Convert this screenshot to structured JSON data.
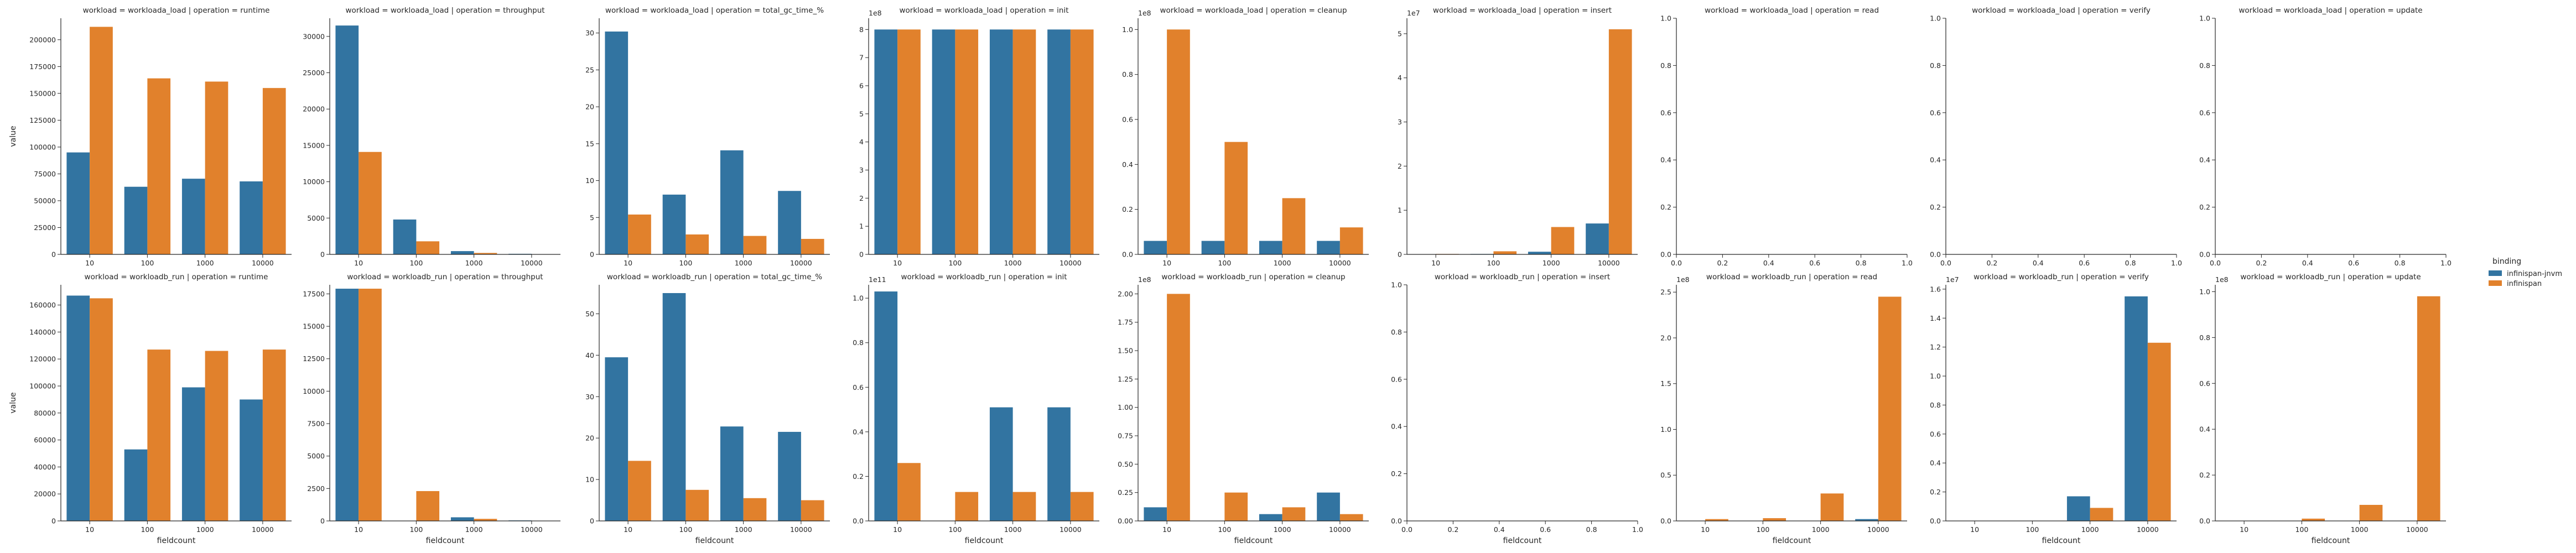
{
  "legend": {
    "title": "binding",
    "entries": [
      {
        "name": "infinispan-jnvm",
        "color": "#3274a1"
      },
      {
        "name": "infinispan",
        "color": "#e1812c"
      }
    ]
  },
  "chart_data": {
    "type": "bar",
    "grid": false,
    "legend_position": "right",
    "series_names": [
      "infinispan-jnvm",
      "infinispan"
    ],
    "series_colors": [
      "#3274a1",
      "#e1812c"
    ],
    "xlabel": "fieldcount",
    "ylabel": "value",
    "panels": [
      {
        "title": "workload = workloada_load | operation = runtime",
        "categories": [
          "10",
          "100",
          "1000",
          "10000"
        ],
        "values": [
          [
            95000,
            63000,
            70500,
            68000
          ],
          [
            212000,
            164000,
            161000,
            155000
          ]
        ],
        "ylim": [
          0,
          220000
        ],
        "yticks": [
          0,
          25000,
          50000,
          75000,
          100000,
          125000,
          150000,
          175000,
          200000
        ],
        "ytick_labels": [
          "0",
          "25000",
          "50000",
          "75000",
          "100000",
          "125000",
          "150000",
          "175000",
          "200000"
        ],
        "offset": ""
      },
      {
        "title": "workload = workloada_load | operation = throughput",
        "categories": [
          "10",
          "100",
          "1000",
          "10000"
        ],
        "values": [
          [
            31500,
            4800,
            450,
            80
          ],
          [
            14100,
            1800,
            200,
            30
          ]
        ],
        "ylim": [
          0,
          32500
        ],
        "yticks": [
          0,
          5000,
          10000,
          15000,
          20000,
          25000,
          30000
        ],
        "ytick_labels": [
          "0",
          "5000",
          "10000",
          "15000",
          "20000",
          "25000",
          "30000"
        ],
        "offset": ""
      },
      {
        "title": "workload = workloada_load | operation = total_gc_time_%",
        "categories": [
          "10",
          "100",
          "1000",
          "10000"
        ],
        "values": [
          [
            30.2,
            8.1,
            14.1,
            8.6
          ],
          [
            5.4,
            2.7,
            2.5,
            2.1
          ]
        ],
        "ylim": [
          0,
          32
        ],
        "yticks": [
          0,
          5,
          10,
          15,
          20,
          25,
          30
        ],
        "ytick_labels": [
          "0",
          "5",
          "10",
          "15",
          "20",
          "25",
          "30"
        ],
        "offset": ""
      },
      {
        "title": "workload = workloada_load | operation = init",
        "categories": [
          "10",
          "100",
          "1000",
          "10000"
        ],
        "values": [
          [
            8.0,
            8.0,
            8.0,
            8.0
          ],
          [
            8.0,
            8.0,
            8.0,
            8.0
          ]
        ],
        "ylim": [
          0,
          8.4
        ],
        "yticks": [
          0,
          1,
          2,
          3,
          4,
          5,
          6,
          7,
          8
        ],
        "ytick_labels": [
          "0",
          "1",
          "2",
          "3",
          "4",
          "5",
          "6",
          "7",
          "8"
        ],
        "offset": "1e8"
      },
      {
        "title": "workload = workloada_load | operation = cleanup",
        "categories": [
          "10",
          "100",
          "1000",
          "10000"
        ],
        "values": [
          [
            0.06,
            0.06,
            0.06,
            0.06
          ],
          [
            1.0,
            0.5,
            0.25,
            0.12
          ]
        ],
        "ylim": [
          0,
          1.05
        ],
        "yticks": [
          0,
          0.2,
          0.4,
          0.6,
          0.8,
          1.0
        ],
        "ytick_labels": [
          "0.0",
          "0.2",
          "0.4",
          "0.6",
          "0.8",
          "1.0"
        ],
        "offset": "1e8"
      },
      {
        "title": "workload = workloada_load | operation = insert",
        "categories": [
          "10",
          "100",
          "1000",
          "10000"
        ],
        "values": [
          [
            0.0,
            0.01,
            0.06,
            0.7
          ],
          [
            0.01,
            0.07,
            0.62,
            5.1
          ]
        ],
        "ylim": [
          0,
          5.35
        ],
        "yticks": [
          0,
          1,
          2,
          3,
          4,
          5
        ],
        "ytick_labels": [
          "0",
          "1",
          "2",
          "3",
          "4",
          "5"
        ],
        "offset": "1e7"
      },
      {
        "title": "workload = workloada_load | operation = read",
        "empty": true,
        "xlim": [
          0,
          1
        ],
        "ylim": [
          0,
          1
        ],
        "yticks": [
          0,
          0.2,
          0.4,
          0.6,
          0.8,
          1.0
        ],
        "ytick_labels": [
          "0.0",
          "0.2",
          "0.4",
          "0.6",
          "0.8",
          "1.0"
        ],
        "xticks": [
          0,
          0.2,
          0.4,
          0.6,
          0.8,
          1.0
        ],
        "xtick_labels": [
          "0.0",
          "0.2",
          "0.4",
          "0.6",
          "0.8",
          "1.0"
        ],
        "offset": ""
      },
      {
        "title": "workload = workloada_load | operation = verify",
        "empty": true,
        "xlim": [
          0,
          1
        ],
        "ylim": [
          0,
          1
        ],
        "yticks": [
          0,
          0.2,
          0.4,
          0.6,
          0.8,
          1.0
        ],
        "ytick_labels": [
          "0.0",
          "0.2",
          "0.4",
          "0.6",
          "0.8",
          "1.0"
        ],
        "xticks": [
          0,
          0.2,
          0.4,
          0.6,
          0.8,
          1.0
        ],
        "xtick_labels": [
          "0.0",
          "0.2",
          "0.4",
          "0.6",
          "0.8",
          "1.0"
        ],
        "offset": ""
      },
      {
        "title": "workload = workloada_load | operation = update",
        "empty": true,
        "xlim": [
          0,
          1
        ],
        "ylim": [
          0,
          1
        ],
        "yticks": [
          0,
          0.2,
          0.4,
          0.6,
          0.8,
          1.0
        ],
        "ytick_labels": [
          "0.0",
          "0.2",
          "0.4",
          "0.6",
          "0.8",
          "1.0"
        ],
        "xticks": [
          0,
          0.2,
          0.4,
          0.6,
          0.8,
          1.0
        ],
        "xtick_labels": [
          "0.0",
          "0.2",
          "0.4",
          "0.6",
          "0.8",
          "1.0"
        ],
        "offset": ""
      },
      {
        "title": "workload = workloadb_run | operation = runtime",
        "categories": [
          "10",
          "100",
          "1000",
          "10000"
        ],
        "values": [
          [
            167000,
            53000,
            99000,
            90000
          ],
          [
            165000,
            127000,
            126000,
            127000
          ]
        ],
        "ylim": [
          0,
          175000
        ],
        "yticks": [
          0,
          20000,
          40000,
          60000,
          80000,
          100000,
          120000,
          140000,
          160000
        ],
        "ytick_labels": [
          "0",
          "20000",
          "40000",
          "60000",
          "80000",
          "100000",
          "120000",
          "140000",
          "160000"
        ],
        "offset": ""
      },
      {
        "title": "workload = workloadb_run | operation = throughput",
        "categories": [
          "10",
          "100",
          "1000",
          "10000"
        ],
        "values": [
          [
            17900,
            0,
            280,
            40
          ],
          [
            17900,
            2300,
            160,
            20
          ]
        ],
        "ylim": [
          0,
          18200
        ],
        "yticks": [
          0,
          2500,
          5000,
          7500,
          10000,
          12500,
          15000,
          17500
        ],
        "ytick_labels": [
          "0",
          "2500",
          "5000",
          "7500",
          "10000",
          "12500",
          "15000",
          "17500"
        ],
        "offset": ""
      },
      {
        "title": "workload = workloadb_run | operation = total_gc_time_%",
        "categories": [
          "10",
          "100",
          "1000",
          "10000"
        ],
        "values": [
          [
            39.5,
            55.0,
            22.8,
            21.5
          ],
          [
            14.5,
            7.5,
            5.5,
            5.0
          ]
        ],
        "ylim": [
          0,
          57
        ],
        "yticks": [
          0,
          10,
          20,
          30,
          40,
          50
        ],
        "ytick_labels": [
          "0",
          "10",
          "20",
          "30",
          "40",
          "50"
        ],
        "offset": ""
      },
      {
        "title": "workload = workloadb_run | operation = init",
        "categories": [
          "10",
          "100",
          "1000",
          "10000"
        ],
        "values": [
          [
            1.03,
            0,
            0.51,
            0.51
          ],
          [
            0.26,
            0.13,
            0.13,
            0.13
          ]
        ],
        "ylim": [
          0,
          1.06
        ],
        "yticks": [
          0,
          0.2,
          0.4,
          0.6,
          0.8,
          1.0
        ],
        "ytick_labels": [
          "0.0",
          "0.2",
          "0.4",
          "0.6",
          "0.8",
          "1.0"
        ],
        "offset": "1e11"
      },
      {
        "title": "workload = workloadb_run | operation = cleanup",
        "categories": [
          "10",
          "100",
          "1000",
          "10000"
        ],
        "values": [
          [
            0.12,
            0,
            0.06,
            0.25
          ],
          [
            2.0,
            0.25,
            0.12,
            0.06
          ]
        ],
        "ylim": [
          0,
          2.08
        ],
        "yticks": [
          0,
          0.25,
          0.5,
          0.75,
          1.0,
          1.25,
          1.5,
          1.75,
          2.0
        ],
        "ytick_labels": [
          "0.00",
          "0.25",
          "0.50",
          "0.75",
          "1.00",
          "1.25",
          "1.50",
          "1.75",
          "2.00"
        ],
        "offset": "1e8"
      },
      {
        "title": "workload = workloadb_run | operation = insert",
        "empty": true,
        "xlim": [
          0,
          1
        ],
        "ylim": [
          0,
          1
        ],
        "yticks": [
          0,
          0.2,
          0.4,
          0.6,
          0.8,
          1.0
        ],
        "ytick_labels": [
          "0.0",
          "0.2",
          "0.4",
          "0.6",
          "0.8",
          "1.0"
        ],
        "xticks": [
          0,
          0.2,
          0.4,
          0.6,
          0.8,
          1.0
        ],
        "xtick_labels": [
          "0.0",
          "0.2",
          "0.4",
          "0.6",
          "0.8",
          "1.0"
        ],
        "offset": ""
      },
      {
        "title": "workload = workloadb_run | operation = read",
        "categories": [
          "10",
          "100",
          "1000",
          "10000"
        ],
        "values": [
          [
            0.0,
            0.0,
            0.0,
            0.02
          ],
          [
            0.02,
            0.03,
            0.3,
            2.45
          ]
        ],
        "ylim": [
          0,
          2.58
        ],
        "yticks": [
          0,
          0.5,
          1.0,
          1.5,
          2.0,
          2.5
        ],
        "ytick_labels": [
          "0.0",
          "0.5",
          "1.0",
          "1.5",
          "2.0",
          "2.5"
        ],
        "offset": "1e8"
      },
      {
        "title": "workload = workloadb_run | operation = verify",
        "categories": [
          "10",
          "100",
          "1000",
          "10000"
        ],
        "values": [
          [
            0.0,
            0.0,
            0.17,
            1.55
          ],
          [
            0.0,
            0.0,
            0.09,
            1.23
          ]
        ],
        "ylim": [
          0,
          1.63
        ],
        "yticks": [
          0,
          0.2,
          0.4,
          0.6,
          0.8,
          1.0,
          1.2,
          1.4,
          1.6
        ],
        "ytick_labels": [
          "0.0",
          "0.2",
          "0.4",
          "0.6",
          "0.8",
          "1.0",
          "1.2",
          "1.4",
          "1.6"
        ],
        "offset": "1e7"
      },
      {
        "title": "workload = workloadb_run | operation = update",
        "categories": [
          "10",
          "100",
          "1000",
          "10000"
        ],
        "values": [
          [
            0.0,
            0.0,
            0.0,
            0.0
          ],
          [
            0.0,
            0.01,
            0.07,
            0.98
          ]
        ],
        "ylim": [
          0,
          1.03
        ],
        "yticks": [
          0,
          0.2,
          0.4,
          0.6,
          0.8,
          1.0
        ],
        "ytick_labels": [
          "0.0",
          "0.2",
          "0.4",
          "0.6",
          "0.8",
          "1.0"
        ],
        "offset": "1e8"
      }
    ]
  }
}
